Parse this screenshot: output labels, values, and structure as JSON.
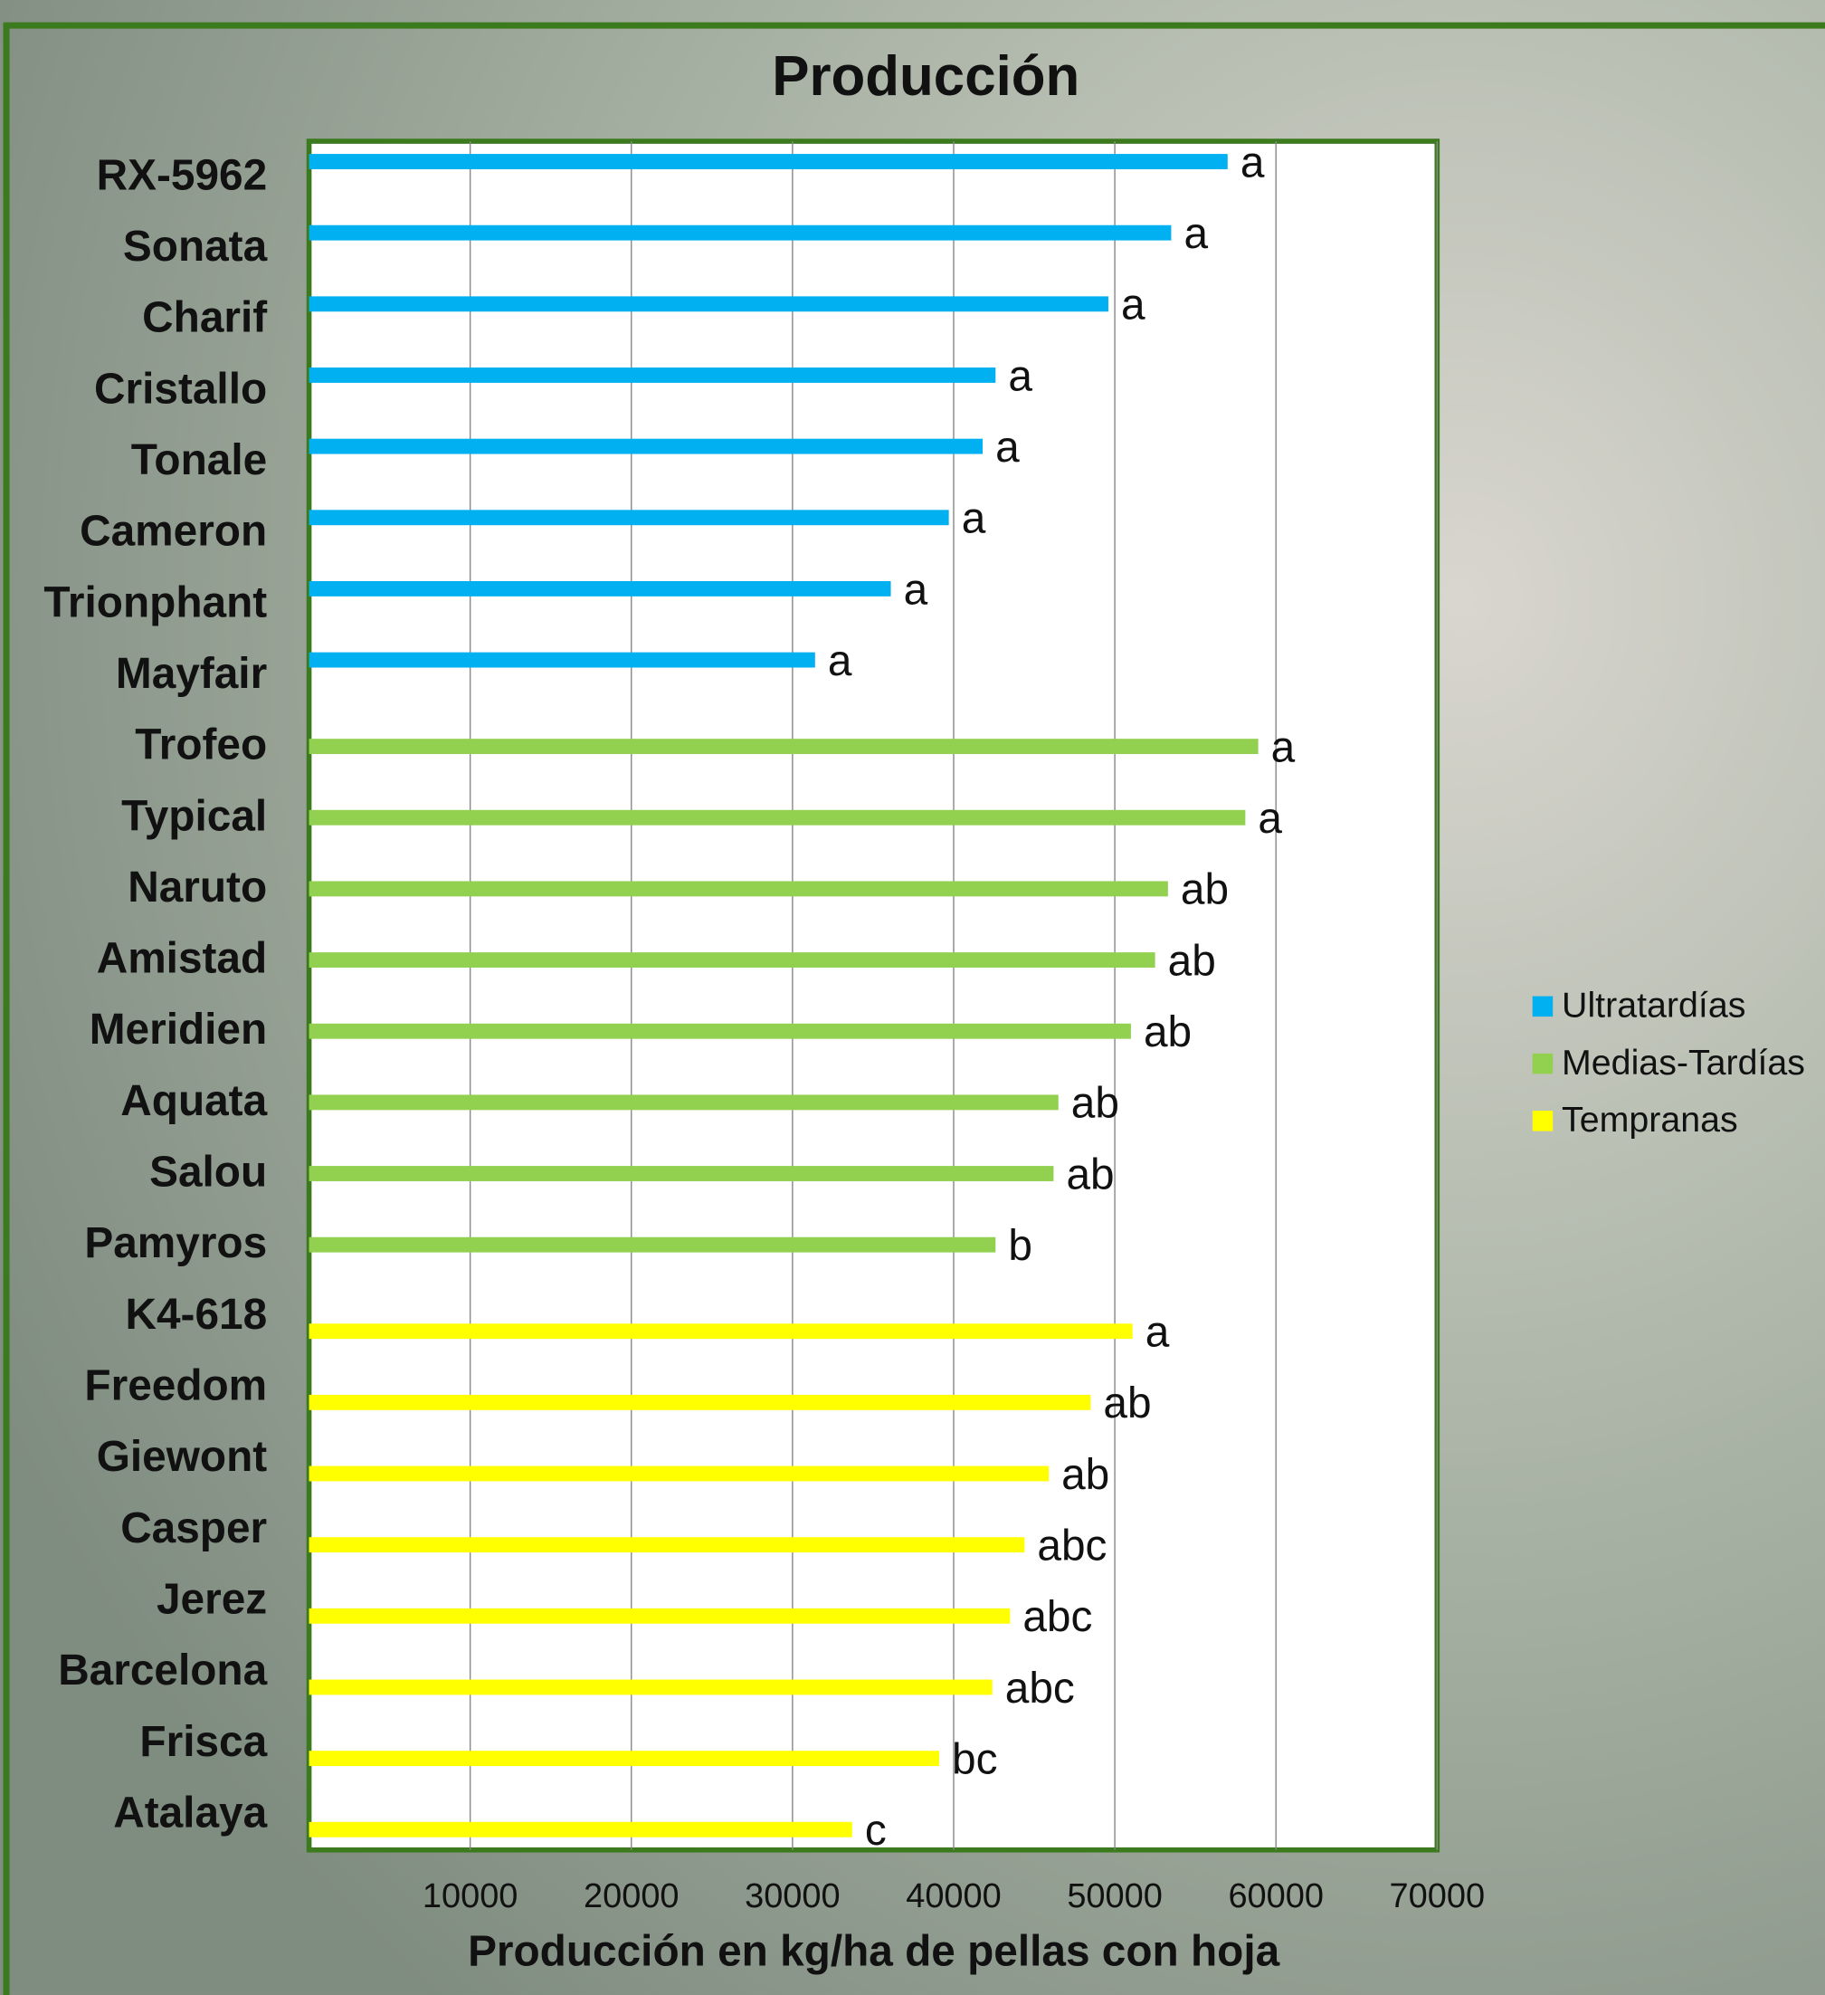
{
  "chart_data": {
    "type": "bar",
    "orientation": "horizontal",
    "title": "Producción",
    "x_label": "Producción en kg/ha de pellas con hoja",
    "categories": [
      "RX-5962",
      "Sonata",
      "Charif",
      "Cristallo",
      "Tonale",
      "Cameron",
      "Trionphant",
      "Mayfair",
      "Trofeo",
      "Typical",
      "Naruto",
      "Amistad",
      "Meridien",
      "Aquata",
      "Salou",
      "Pamyros",
      "K4-618",
      "Freedom",
      "Giewont",
      "Casper",
      "Jerez",
      "Barcelona",
      "Frisca",
      "Atalaya"
    ],
    "series": [
      {
        "name": "Ultratardías",
        "color": "#00b0f0",
        "values": [
          57000,
          53500,
          49600,
          42600,
          41800,
          39700,
          36100,
          31400,
          null,
          null,
          null,
          null,
          null,
          null,
          null,
          null,
          null,
          null,
          null,
          null,
          null,
          null,
          null,
          null
        ],
        "letters": [
          "a",
          "a",
          "a",
          "a",
          "a",
          "a",
          "a",
          "a",
          null,
          null,
          null,
          null,
          null,
          null,
          null,
          null,
          null,
          null,
          null,
          null,
          null,
          null,
          null,
          null
        ]
      },
      {
        "name": "Medias-Tardías",
        "color": "#92d050",
        "values": [
          null,
          null,
          null,
          null,
          null,
          null,
          null,
          null,
          58900,
          58100,
          53300,
          52500,
          51000,
          46500,
          46200,
          42600,
          null,
          null,
          null,
          null,
          null,
          null,
          null,
          null
        ],
        "letters": [
          null,
          null,
          null,
          null,
          null,
          null,
          null,
          null,
          "a",
          "a",
          "ab",
          "ab",
          "ab",
          "ab",
          "ab",
          "b",
          null,
          null,
          null,
          null,
          null,
          null,
          null,
          null
        ]
      },
      {
        "name": "Tempranas",
        "color": "#ffff00",
        "values": [
          null,
          null,
          null,
          null,
          null,
          null,
          null,
          null,
          null,
          null,
          null,
          null,
          null,
          null,
          null,
          null,
          51100,
          48500,
          45900,
          44400,
          43500,
          42400,
          39100,
          33700
        ],
        "letters": [
          null,
          null,
          null,
          null,
          null,
          null,
          null,
          null,
          null,
          null,
          null,
          null,
          null,
          null,
          null,
          null,
          "a",
          "ab",
          "ab",
          "abc",
          "abc",
          "abc",
          "bc",
          "c"
        ]
      }
    ],
    "xlim": [
      0,
      70000
    ],
    "xticks": [
      10000,
      20000,
      30000,
      40000,
      50000,
      60000,
      70000
    ],
    "grid": true,
    "legend": "right"
  }
}
